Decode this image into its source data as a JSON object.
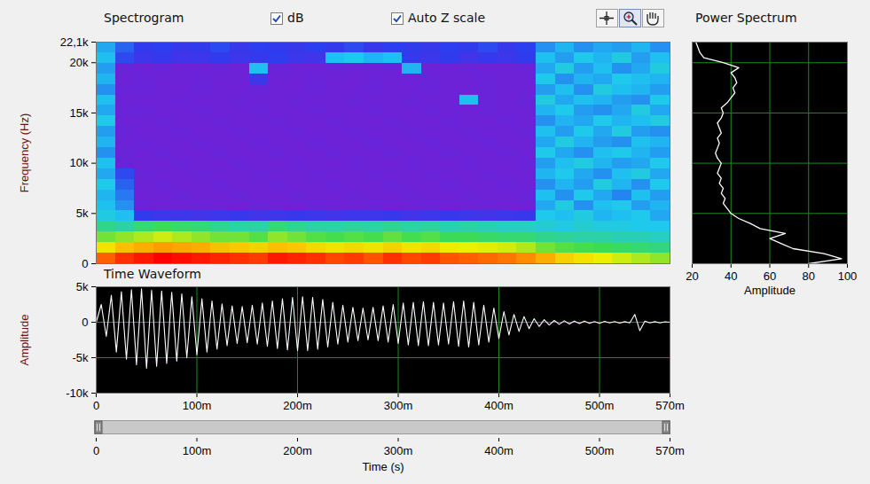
{
  "chart_data": [
    {
      "type": "heatmap",
      "title": "Spectrogram",
      "ylabel": "Frequency (Hz)",
      "xlim": [
        0,
        0.57
      ],
      "ylim": [
        0,
        22050
      ],
      "yticks": [
        0,
        {
          "value": 5000,
          "label": "5k"
        },
        {
          "value": 10000,
          "label": "10k"
        },
        {
          "value": 15000,
          "label": "15k"
        },
        {
          "value": 20000,
          "label": "20k"
        },
        {
          "value": 22050,
          "label": "22,1k"
        }
      ],
      "tick_labels": "y",
      "x": [
        0,
        0.019,
        0.038,
        0.057,
        0.076,
        0.095,
        0.114,
        0.133,
        0.152,
        0.171,
        0.19,
        0.209,
        0.228,
        0.247,
        0.266,
        0.285,
        0.304,
        0.323,
        0.342,
        0.361,
        0.38,
        0.399,
        0.418,
        0.437,
        0.456,
        0.475,
        0.494,
        0.513,
        0.532,
        0.551
      ],
      "y": [
        0,
        1050,
        2100,
        3150,
        4200,
        5250,
        6300,
        7350,
        8400,
        9450,
        10500,
        11550,
        12600,
        13650,
        14700,
        15750,
        16800,
        17850,
        18900,
        19950,
        21000
      ],
      "values": [
        [
          84,
          88,
          90,
          92,
          91,
          90,
          89,
          88,
          87,
          90,
          89,
          88,
          86,
          87,
          85,
          88,
          86,
          87,
          85,
          84,
          83,
          82,
          80,
          76,
          72,
          70,
          68,
          66,
          64,
          62
        ],
        [
          70,
          74,
          76,
          78,
          77,
          76,
          74,
          73,
          72,
          74,
          73,
          71,
          70,
          71,
          70,
          72,
          70,
          71,
          69,
          68,
          67,
          66,
          64,
          60,
          58,
          57,
          56,
          55,
          54,
          53
        ],
        [
          60,
          62,
          64,
          66,
          64,
          62,
          60,
          60,
          58,
          62,
          60,
          58,
          57,
          58,
          57,
          59,
          57,
          58,
          56,
          56,
          55,
          54,
          54,
          52,
          51,
          50,
          50,
          49,
          49,
          48
        ],
        [
          52,
          50,
          54,
          56,
          55,
          54,
          52,
          50,
          50,
          54,
          52,
          50,
          50,
          51,
          50,
          52,
          50,
          51,
          49,
          50,
          49,
          48,
          48,
          47,
          46,
          47,
          46,
          46,
          45,
          45
        ],
        [
          46,
          44,
          32,
          30,
          30,
          29,
          30,
          31,
          29,
          30,
          31,
          30,
          29,
          30,
          30,
          31,
          29,
          30,
          31,
          30,
          29,
          30,
          31,
          45,
          44,
          46,
          43,
          44,
          45,
          42
        ],
        [
          44,
          40,
          22,
          21,
          21,
          22,
          21,
          21,
          22,
          21,
          21,
          22,
          21,
          21,
          22,
          21,
          21,
          22,
          21,
          21,
          22,
          21,
          21,
          42,
          46,
          40,
          44,
          45,
          41,
          43
        ],
        [
          43,
          38,
          21,
          21,
          22,
          21,
          21,
          22,
          21,
          21,
          22,
          21,
          21,
          22,
          21,
          21,
          22,
          21,
          21,
          22,
          21,
          21,
          22,
          44,
          40,
          45,
          42,
          39,
          44,
          41
        ],
        [
          45,
          36,
          21,
          22,
          21,
          21,
          22,
          21,
          21,
          22,
          21,
          21,
          22,
          21,
          21,
          22,
          21,
          21,
          22,
          21,
          21,
          22,
          21,
          40,
          43,
          41,
          46,
          43,
          40,
          45
        ],
        [
          42,
          34,
          22,
          21,
          21,
          22,
          21,
          21,
          22,
          21,
          21,
          22,
          21,
          21,
          22,
          21,
          21,
          22,
          21,
          21,
          22,
          21,
          21,
          43,
          45,
          42,
          40,
          44,
          46,
          42
        ],
        [
          44,
          22,
          21,
          21,
          22,
          21,
          21,
          22,
          21,
          21,
          22,
          21,
          21,
          22,
          21,
          21,
          22,
          21,
          21,
          22,
          21,
          21,
          22,
          41,
          44,
          46,
          43,
          41,
          42,
          45
        ],
        [
          40,
          22,
          21,
          22,
          21,
          21,
          22,
          21,
          21,
          22,
          21,
          21,
          22,
          21,
          21,
          22,
          21,
          21,
          22,
          21,
          21,
          22,
          21,
          45,
          42,
          40,
          44,
          45,
          43,
          41
        ],
        [
          43,
          21,
          22,
          21,
          21,
          22,
          21,
          21,
          22,
          21,
          21,
          22,
          21,
          21,
          22,
          21,
          21,
          22,
          21,
          21,
          22,
          21,
          21,
          42,
          46,
          43,
          41,
          40,
          44,
          43
        ],
        [
          41,
          22,
          21,
          21,
          22,
          21,
          21,
          22,
          21,
          21,
          22,
          21,
          21,
          22,
          21,
          21,
          22,
          21,
          21,
          22,
          21,
          21,
          22,
          44,
          41,
          45,
          42,
          46,
          41,
          40
        ],
        [
          45,
          21,
          21,
          22,
          21,
          21,
          22,
          21,
          21,
          22,
          21,
          21,
          22,
          21,
          21,
          22,
          21,
          21,
          22,
          21,
          21,
          22,
          21,
          40,
          43,
          42,
          45,
          43,
          44,
          46
        ],
        [
          42,
          22,
          22,
          21,
          21,
          22,
          21,
          21,
          22,
          21,
          21,
          22,
          21,
          21,
          22,
          21,
          21,
          22,
          21,
          21,
          22,
          21,
          21,
          43,
          45,
          41,
          40,
          42,
          46,
          42
        ],
        [
          44,
          21,
          21,
          21,
          22,
          21,
          21,
          22,
          21,
          21,
          22,
          21,
          21,
          22,
          21,
          21,
          22,
          21,
          21,
          44,
          22,
          21,
          22,
          46,
          42,
          44,
          43,
          41,
          40,
          45
        ],
        [
          40,
          22,
          22,
          21,
          21,
          22,
          21,
          21,
          22,
          21,
          21,
          22,
          21,
          21,
          22,
          21,
          21,
          22,
          21,
          21,
          22,
          21,
          21,
          41,
          44,
          40,
          46,
          44,
          43,
          41
        ],
        [
          43,
          21,
          22,
          21,
          21,
          22,
          21,
          21,
          30,
          21,
          21,
          22,
          21,
          21,
          22,
          21,
          21,
          22,
          21,
          21,
          22,
          21,
          21,
          45,
          40,
          43,
          42,
          45,
          44,
          43
        ],
        [
          41,
          22,
          21,
          22,
          21,
          21,
          22,
          21,
          44,
          22,
          21,
          21,
          22,
          21,
          21,
          22,
          43,
          21,
          21,
          22,
          21,
          21,
          22,
          42,
          46,
          41,
          44,
          40,
          42,
          46
        ],
        [
          44,
          34,
          30,
          31,
          29,
          30,
          32,
          30,
          31,
          33,
          30,
          29,
          44,
          45,
          43,
          44,
          31,
          30,
          32,
          29,
          31,
          30,
          32,
          44,
          41,
          45,
          43,
          46,
          41,
          44
        ],
        [
          42,
          36,
          32,
          33,
          31,
          32,
          34,
          31,
          33,
          32,
          31,
          33,
          32,
          34,
          31,
          33,
          32,
          31,
          33,
          32,
          34,
          31,
          33,
          40,
          43,
          40,
          42,
          41,
          43,
          40
        ]
      ]
    },
    {
      "type": "line",
      "title": "Power Spectrum",
      "xlabel": "Amplitude",
      "xlim": [
        20,
        100
      ],
      "xticks": [
        20,
        40,
        60,
        80,
        100
      ],
      "ylim": [
        0,
        22050
      ],
      "yticks": [
        0,
        5000,
        10000,
        15000,
        20000
      ],
      "grid": true,
      "tick_labels": "x",
      "color": "#ffffff",
      "y": [
        0,
        500,
        1000,
        1500,
        2000,
        2500,
        3000,
        3500,
        4000,
        4500,
        5000,
        5500,
        6000,
        6500,
        7000,
        7500,
        8000,
        8500,
        9000,
        9500,
        10000,
        10500,
        11000,
        11500,
        12000,
        12500,
        13000,
        13500,
        14000,
        14500,
        15000,
        15500,
        16000,
        16500,
        17000,
        17500,
        18000,
        18500,
        19000,
        19500,
        20000,
        20500,
        21000,
        21500,
        22000,
        22050
      ],
      "values": [
        80,
        97,
        88,
        72,
        66,
        60,
        68,
        55,
        50,
        44,
        40,
        38,
        36,
        37,
        35,
        36,
        34,
        35,
        33,
        34,
        35,
        33,
        32,
        33,
        34,
        33,
        35,
        34,
        33,
        35,
        36,
        35,
        38,
        40,
        42,
        41,
        43,
        42,
        40,
        44,
        36,
        26,
        24,
        23,
        22,
        22
      ]
    },
    {
      "type": "line",
      "title": "Time Waveform",
      "xlabel": "Time (s)",
      "ylabel": "Amplitude",
      "xlim": [
        0,
        0.57
      ],
      "ylim": [
        -10000,
        5000
      ],
      "xticks": [
        0,
        {
          "value": 0.1,
          "label": "100m"
        },
        {
          "value": 0.2,
          "label": "200m"
        },
        {
          "value": 0.3,
          "label": "300m"
        },
        {
          "value": 0.4,
          "label": "400m"
        },
        {
          "value": 0.5,
          "label": "500m"
        },
        {
          "value": 0.57,
          "label": "570m"
        }
      ],
      "yticks": [
        {
          "value": 5000,
          "label": "5k"
        },
        0,
        {
          "value": -5000,
          "label": "-5k"
        },
        {
          "value": -10000,
          "label": "-10k"
        }
      ],
      "grid": true,
      "color": "#ffffff",
      "x": [
        0,
        0.005,
        0.01,
        0.015,
        0.02,
        0.025,
        0.03,
        0.035,
        0.04,
        0.045,
        0.05,
        0.055,
        0.06,
        0.065,
        0.07,
        0.075,
        0.08,
        0.085,
        0.09,
        0.095,
        0.1,
        0.105,
        0.11,
        0.115,
        0.12,
        0.125,
        0.13,
        0.135,
        0.14,
        0.145,
        0.15,
        0.155,
        0.16,
        0.165,
        0.17,
        0.175,
        0.18,
        0.185,
        0.19,
        0.195,
        0.2,
        0.205,
        0.21,
        0.215,
        0.22,
        0.225,
        0.23,
        0.235,
        0.24,
        0.245,
        0.25,
        0.255,
        0.26,
        0.265,
        0.27,
        0.275,
        0.28,
        0.285,
        0.29,
        0.295,
        0.3,
        0.305,
        0.31,
        0.315,
        0.32,
        0.325,
        0.33,
        0.335,
        0.34,
        0.345,
        0.35,
        0.355,
        0.36,
        0.365,
        0.37,
        0.375,
        0.38,
        0.385,
        0.39,
        0.395,
        0.4,
        0.405,
        0.41,
        0.415,
        0.42,
        0.425,
        0.43,
        0.435,
        0.44,
        0.445,
        0.45,
        0.455,
        0.46,
        0.465,
        0.47,
        0.475,
        0.48,
        0.485,
        0.49,
        0.495,
        0.5,
        0.505,
        0.51,
        0.515,
        0.52,
        0.525,
        0.53,
        0.535,
        0.54,
        0.545,
        0.55,
        0.555,
        0.56,
        0.565,
        0.57
      ],
      "values": [
        0,
        2500,
        -2000,
        3800,
        -4200,
        4300,
        -5200,
        4600,
        -6000,
        4700,
        -6500,
        4500,
        -6200,
        4400,
        -5800,
        4200,
        -5500,
        4000,
        -5000,
        3600,
        -4600,
        3300,
        -4200,
        3000,
        -3800,
        2600,
        -3300,
        2300,
        -3000,
        2200,
        -2900,
        2400,
        -3100,
        2700,
        -3400,
        3000,
        -3700,
        3300,
        -3900,
        3500,
        -4000,
        3600,
        -4000,
        3500,
        -3800,
        3200,
        -3500,
        2800,
        -3100,
        2400,
        -2800,
        2100,
        -2600,
        2000,
        -2500,
        2100,
        -2600,
        2300,
        -2800,
        2500,
        -3000,
        2700,
        -3200,
        2800,
        -3300,
        2900,
        -3300,
        2800,
        -3200,
        2700,
        -3100,
        2900,
        -3400,
        3000,
        -3500,
        2800,
        -3200,
        2400,
        -2800,
        2000,
        -2300,
        1500,
        -1800,
        1100,
        -1300,
        800,
        -900,
        500,
        -600,
        350,
        -400,
        250,
        -300,
        200,
        -250,
        150,
        -200,
        150,
        -150,
        100,
        -150,
        120,
        -100,
        100,
        -120,
        80,
        -100,
        1100,
        -1200,
        150,
        -100,
        80,
        -100,
        60,
        0
      ]
    }
  ],
  "controls": [
    {
      "label": "dB",
      "checked": true
    },
    {
      "label": "Auto Z scale",
      "checked": true
    }
  ]
}
